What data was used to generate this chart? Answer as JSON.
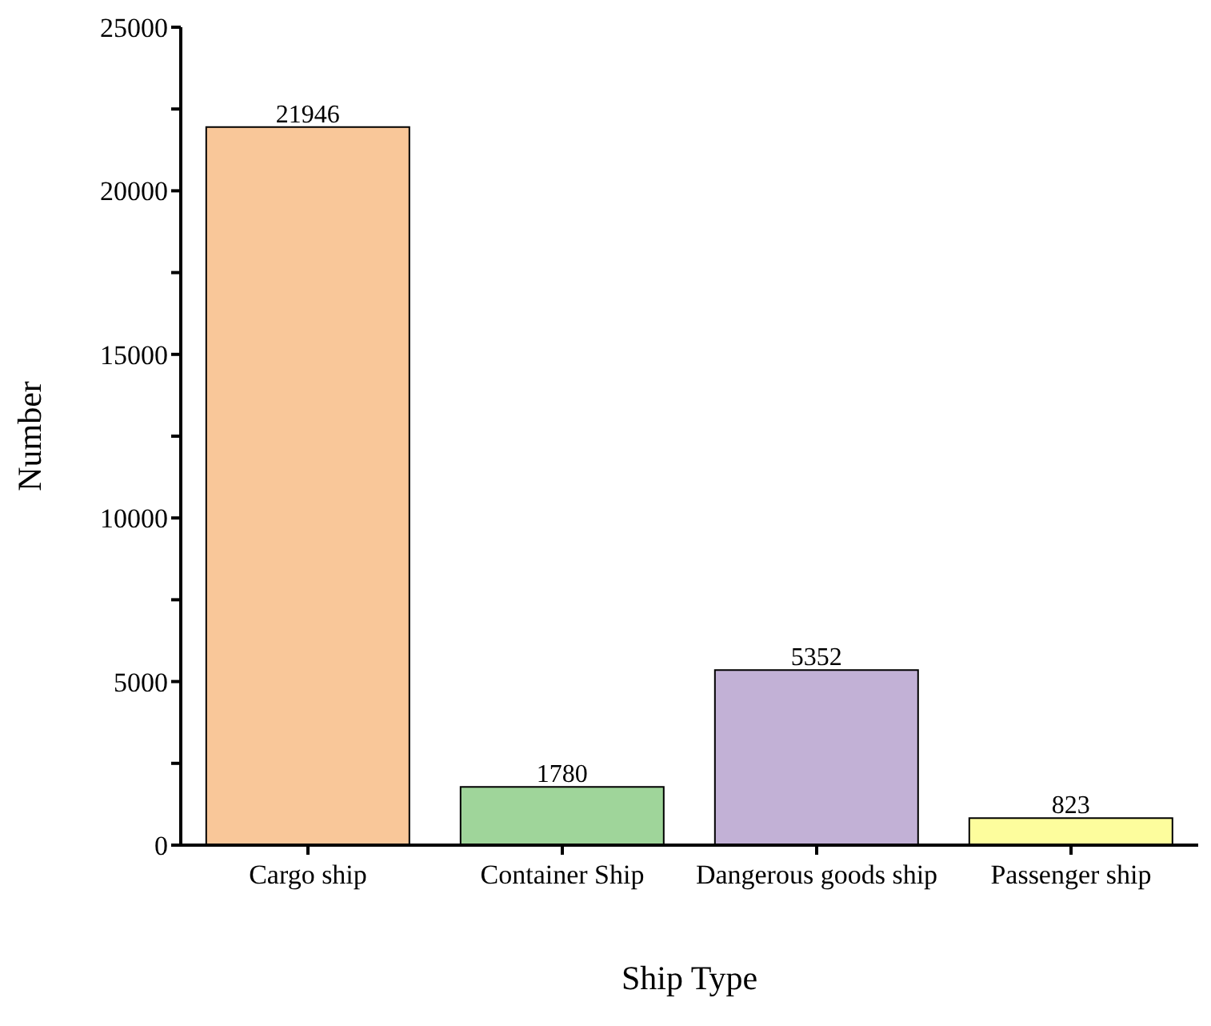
{
  "chart_data": {
    "type": "bar",
    "xlabel": "Ship Type",
    "ylabel": "Number",
    "categories": [
      "Cargo ship",
      "Container Ship",
      "Dangerous goods ship",
      "Passenger ship"
    ],
    "values": [
      21946,
      1780,
      5352,
      823
    ],
    "colors": [
      "#f9c799",
      "#9fd59a",
      "#c2b1d6",
      "#fdfd9d"
    ],
    "ylim": [
      0,
      25000
    ],
    "yticks": [
      0,
      {
        "value": 2500,
        "label": null
      },
      5000,
      {
        "value": 7500,
        "label": null
      },
      10000,
      {
        "value": 12500,
        "label": null
      },
      15000,
      {
        "value": 17500,
        "label": null
      },
      20000,
      {
        "value": 22500,
        "label": null
      },
      25000
    ],
    "data_labels": true,
    "grid": false,
    "legend": false
  }
}
